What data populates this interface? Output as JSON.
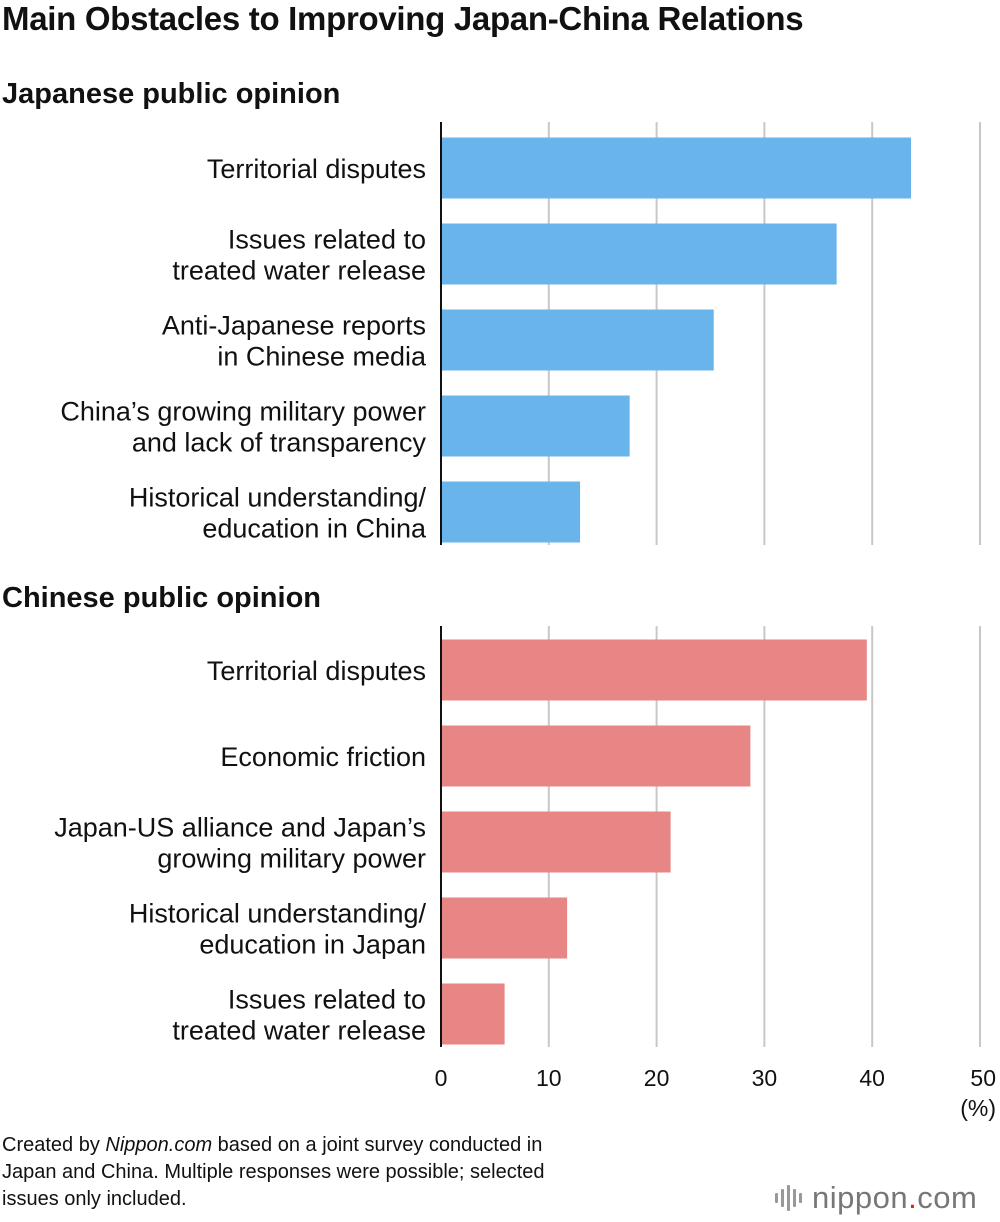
{
  "title": "Main Obstacles to Improving Japan-China Relations",
  "chart_data": [
    {
      "type": "bar",
      "orientation": "horizontal",
      "title": "Japanese public opinion",
      "categories": [
        [
          "Territorial disputes"
        ],
        [
          "Issues related to",
          "treated water release"
        ],
        [
          "Anti-Japanese reports",
          "in Chinese media"
        ],
        [
          "China’s growing military power",
          "and lack of transparency"
        ],
        [
          "Historical understanding/",
          "education in China"
        ]
      ],
      "values": [
        43.6,
        36.7,
        25.3,
        17.5,
        12.9
      ],
      "color": "#6ab4ec",
      "xlim": [
        0,
        50
      ],
      "grid": true
    },
    {
      "type": "bar",
      "orientation": "horizontal",
      "title": "Chinese public opinion",
      "categories": [
        [
          "Territorial disputes"
        ],
        [
          "Economic friction"
        ],
        [
          "Japan-US alliance and Japan’s",
          "growing military power"
        ],
        [
          "Historical understanding/",
          "education in Japan"
        ],
        [
          "Issues related to",
          "treated water release"
        ]
      ],
      "values": [
        39.5,
        28.7,
        21.3,
        11.7,
        5.9
      ],
      "color": "#e88585",
      "xlim": [
        0,
        50
      ],
      "grid": true
    }
  ],
  "axis": {
    "ticks": [
      "0",
      "10",
      "20",
      "30",
      "40",
      "50"
    ],
    "unit": "(%)"
  },
  "footer": {
    "prefix": "Created by ",
    "source": "Nippon.com",
    "line1_rest": " based on a joint survey conducted in",
    "line2": "Japan and China. Multiple responses were possible; selected",
    "line3": "issues only included."
  },
  "logo": {
    "brand": "nippon",
    "dot": ".",
    "tld": "com"
  }
}
